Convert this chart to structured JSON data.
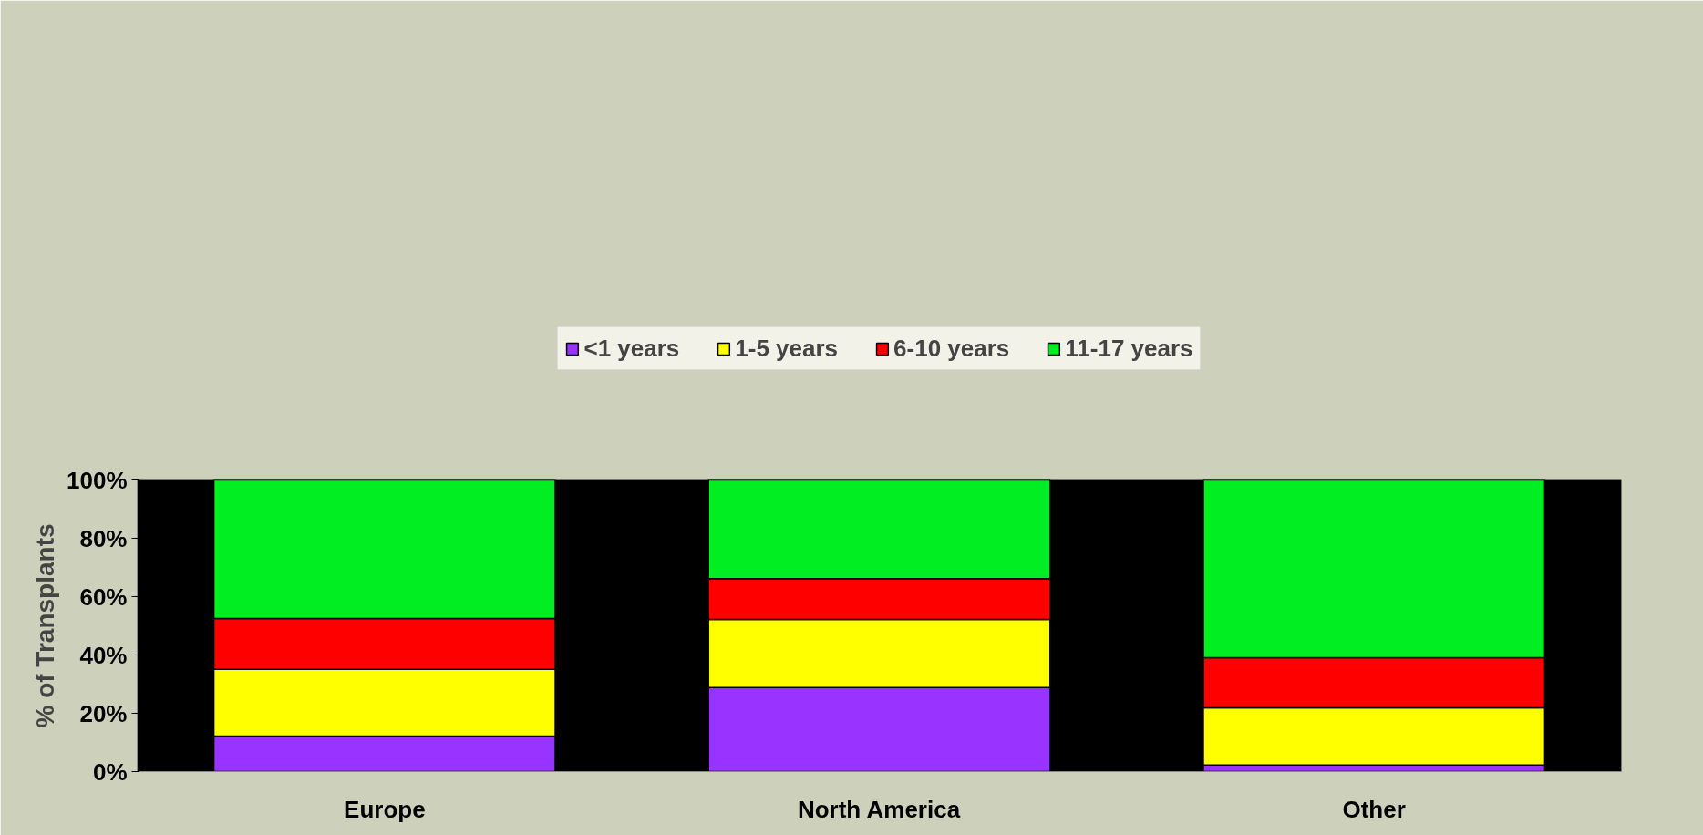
{
  "chart_data": {
    "type": "bar",
    "stacked": true,
    "ylabel": "% of Transplants",
    "categories": [
      "Europe",
      "North America",
      "Other"
    ],
    "series": [
      {
        "name": "<1 years",
        "color": "#9933ff",
        "values": [
          12.2,
          28.8,
          2.3
        ]
      },
      {
        "name": "1-5 years",
        "color": "#ffff00",
        "values": [
          22.9,
          23.4,
          19.6
        ]
      },
      {
        "name": "6-10 years",
        "color": "#ff0000",
        "values": [
          17.4,
          14.0,
          17.2
        ]
      },
      {
        "name": "11-17 years",
        "color": "#00ee22",
        "values": [
          47.5,
          33.8,
          60.9
        ]
      }
    ],
    "ylim": [
      0,
      100
    ],
    "yticks": [
      {
        "value": 0,
        "label": "0%"
      },
      {
        "value": 20,
        "label": "20%"
      },
      {
        "value": 40,
        "label": "40%"
      },
      {
        "value": 60,
        "label": "60%"
      },
      {
        "value": 80,
        "label": "80%"
      },
      {
        "value": 100,
        "label": "100%"
      }
    ],
    "grid": false,
    "legend": "top"
  }
}
